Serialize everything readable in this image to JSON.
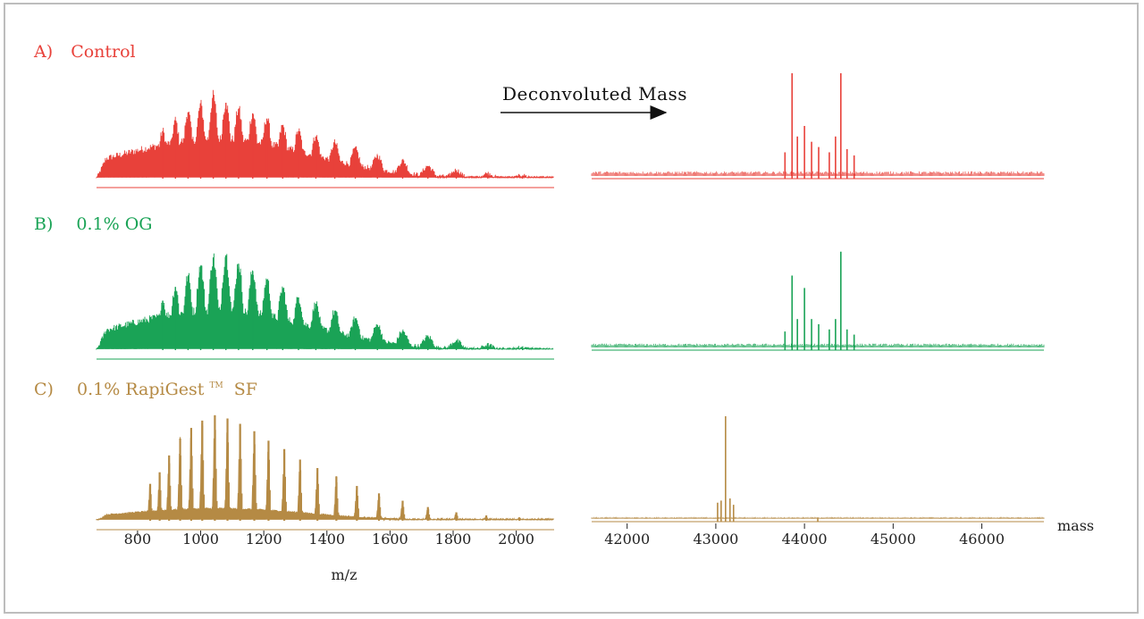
{
  "colors": {
    "control": "#e8413a",
    "og": "#1aa356",
    "rapigest": "#b58a44",
    "axis": "#222222",
    "frame": "#bdbdbd"
  },
  "annotation": {
    "text": "Deconvoluted Mass"
  },
  "chart_data": [
    {
      "type": "line",
      "subplot": "m/z spectra",
      "xlabel": "m/z",
      "xlim": [
        670,
        2120
      ],
      "x_ticks": [
        800,
        1000,
        1200,
        1400,
        1600,
        1800,
        2000
      ],
      "series": [
        {
          "letter": "A)",
          "name": "Control",
          "color_key": "control",
          "peaks": [
            {
              "mz": 880,
              "rel": 0.45
            },
            {
              "mz": 920,
              "rel": 0.55
            },
            {
              "mz": 960,
              "rel": 0.63
            },
            {
              "mz": 1000,
              "rel": 0.7
            },
            {
              "mz": 1040,
              "rel": 0.78
            },
            {
              "mz": 1080,
              "rel": 0.72
            },
            {
              "mz": 1120,
              "rel": 0.66
            },
            {
              "mz": 1165,
              "rel": 0.62
            },
            {
              "mz": 1210,
              "rel": 0.57
            },
            {
              "mz": 1260,
              "rel": 0.5
            },
            {
              "mz": 1310,
              "rel": 0.45
            },
            {
              "mz": 1365,
              "rel": 0.4
            },
            {
              "mz": 1425,
              "rel": 0.34
            },
            {
              "mz": 1490,
              "rel": 0.28
            },
            {
              "mz": 1560,
              "rel": 0.22
            },
            {
              "mz": 1640,
              "rel": 0.17
            },
            {
              "mz": 1720,
              "rel": 0.12
            },
            {
              "mz": 1810,
              "rel": 0.08
            },
            {
              "mz": 1910,
              "rel": 0.05
            },
            {
              "mz": 2020,
              "rel": 0.03
            }
          ]
        },
        {
          "letter": "B)",
          "name": "0.1% OG",
          "color_key": "og",
          "peaks": [
            {
              "mz": 880,
              "rel": 0.47
            },
            {
              "mz": 920,
              "rel": 0.6
            },
            {
              "mz": 960,
              "rel": 0.7
            },
            {
              "mz": 1000,
              "rel": 0.8
            },
            {
              "mz": 1040,
              "rel": 0.88
            },
            {
              "mz": 1080,
              "rel": 0.9
            },
            {
              "mz": 1120,
              "rel": 0.82
            },
            {
              "mz": 1165,
              "rel": 0.75
            },
            {
              "mz": 1210,
              "rel": 0.67
            },
            {
              "mz": 1260,
              "rel": 0.59
            },
            {
              "mz": 1310,
              "rel": 0.5
            },
            {
              "mz": 1365,
              "rel": 0.44
            },
            {
              "mz": 1425,
              "rel": 0.37
            },
            {
              "mz": 1490,
              "rel": 0.3
            },
            {
              "mz": 1560,
              "rel": 0.24
            },
            {
              "mz": 1640,
              "rel": 0.18
            },
            {
              "mz": 1720,
              "rel": 0.13
            },
            {
              "mz": 1810,
              "rel": 0.09
            },
            {
              "mz": 1910,
              "rel": 0.05
            },
            {
              "mz": 2020,
              "rel": 0.03
            }
          ]
        },
        {
          "letter": "C)",
          "name": "0.1% RapiGest",
          "suffix": "SF",
          "mark": "TM",
          "color_key": "rapigest",
          "peaks": [
            {
              "mz": 840,
              "rel": 0.35
            },
            {
              "mz": 870,
              "rel": 0.46
            },
            {
              "mz": 900,
              "rel": 0.62
            },
            {
              "mz": 935,
              "rel": 0.78
            },
            {
              "mz": 970,
              "rel": 0.88
            },
            {
              "mz": 1005,
              "rel": 0.95
            },
            {
              "mz": 1045,
              "rel": 1.0
            },
            {
              "mz": 1085,
              "rel": 0.97
            },
            {
              "mz": 1125,
              "rel": 0.92
            },
            {
              "mz": 1170,
              "rel": 0.85
            },
            {
              "mz": 1215,
              "rel": 0.76
            },
            {
              "mz": 1265,
              "rel": 0.68
            },
            {
              "mz": 1315,
              "rel": 0.58
            },
            {
              "mz": 1370,
              "rel": 0.5
            },
            {
              "mz": 1430,
              "rel": 0.42
            },
            {
              "mz": 1495,
              "rel": 0.33
            },
            {
              "mz": 1565,
              "rel": 0.26
            },
            {
              "mz": 1640,
              "rel": 0.19
            },
            {
              "mz": 1720,
              "rel": 0.13
            },
            {
              "mz": 1810,
              "rel": 0.08
            },
            {
              "mz": 1905,
              "rel": 0.05
            },
            {
              "mz": 2010,
              "rel": 0.03
            }
          ]
        }
      ]
    },
    {
      "type": "line",
      "subplot": "deconvoluted mass spectra",
      "xlabel": "mass",
      "xlim": [
        41600,
        46700
      ],
      "x_ticks": [
        42000,
        43000,
        44000,
        45000,
        46000
      ],
      "series": [
        {
          "name": "Control",
          "color_key": "control",
          "noise": 0.1,
          "peaks": [
            {
              "mass": 43780,
              "rel": 0.25
            },
            {
              "mass": 43860,
              "rel": 1.0
            },
            {
              "mass": 43920,
              "rel": 0.4
            },
            {
              "mass": 44000,
              "rel": 0.5
            },
            {
              "mass": 44080,
              "rel": 0.35
            },
            {
              "mass": 44160,
              "rel": 0.3
            },
            {
              "mass": 44280,
              "rel": 0.25
            },
            {
              "mass": 44350,
              "rel": 0.4
            },
            {
              "mass": 44410,
              "rel": 1.0
            },
            {
              "mass": 44480,
              "rel": 0.28
            },
            {
              "mass": 44560,
              "rel": 0.22
            }
          ]
        },
        {
          "name": "0.1% OG",
          "color_key": "og",
          "noise": 0.08,
          "peaks": [
            {
              "mass": 43780,
              "rel": 0.18
            },
            {
              "mass": 43860,
              "rel": 0.72
            },
            {
              "mass": 43920,
              "rel": 0.3
            },
            {
              "mass": 44000,
              "rel": 0.6
            },
            {
              "mass": 44080,
              "rel": 0.3
            },
            {
              "mass": 44160,
              "rel": 0.25
            },
            {
              "mass": 44280,
              "rel": 0.2
            },
            {
              "mass": 44350,
              "rel": 0.3
            },
            {
              "mass": 44410,
              "rel": 0.95
            },
            {
              "mass": 44480,
              "rel": 0.2
            },
            {
              "mass": 44560,
              "rel": 0.15
            }
          ]
        },
        {
          "name": "0.1% RapiGest SF",
          "color_key": "rapigest",
          "noise": 0.03,
          "peaks": [
            {
              "mass": 43020,
              "rel": 0.18
            },
            {
              "mass": 43060,
              "rel": 0.2
            },
            {
              "mass": 43110,
              "rel": 1.0
            },
            {
              "mass": 43160,
              "rel": 0.22
            },
            {
              "mass": 43200,
              "rel": 0.16
            },
            {
              "mass": 44150,
              "rel": 0.04
            }
          ]
        }
      ]
    }
  ]
}
